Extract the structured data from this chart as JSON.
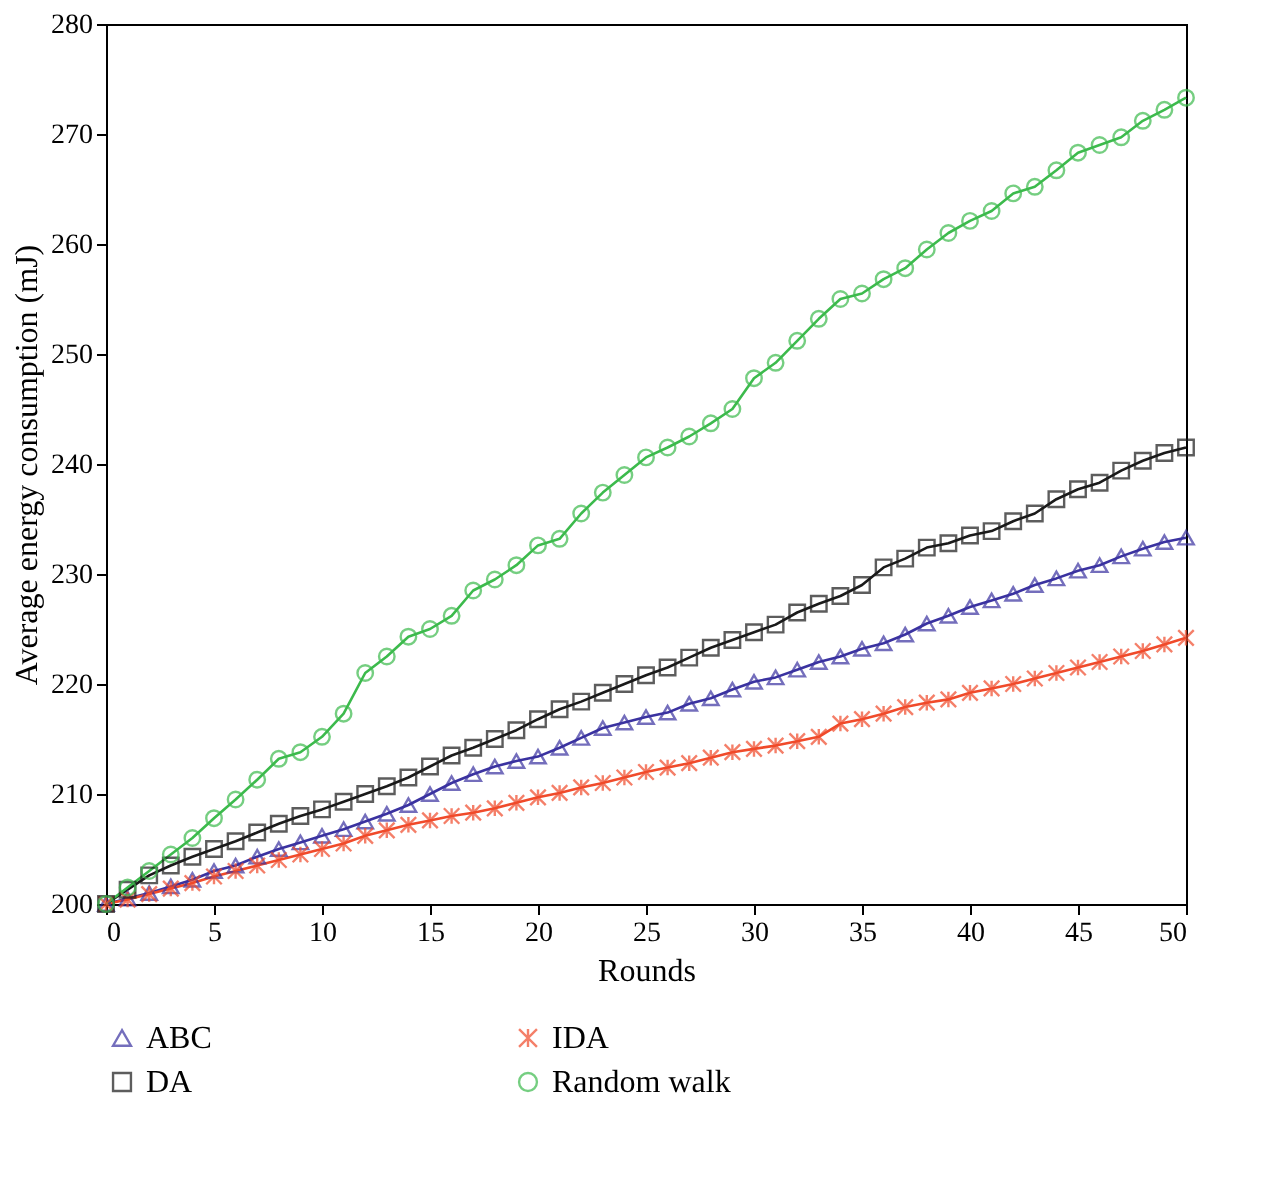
{
  "chart_data": {
    "type": "line",
    "xlabel": "Rounds",
    "ylabel": "Average energy consumption (mJ)",
    "x": [
      0,
      1,
      2,
      3,
      4,
      5,
      6,
      7,
      8,
      9,
      10,
      11,
      12,
      13,
      14,
      15,
      16,
      17,
      18,
      19,
      20,
      21,
      22,
      23,
      24,
      25,
      26,
      27,
      28,
      29,
      30,
      31,
      32,
      33,
      34,
      35,
      36,
      37,
      38,
      39,
      40,
      41,
      42,
      43,
      44,
      45,
      46,
      47,
      48,
      49,
      50
    ],
    "xlim": [
      0,
      50
    ],
    "xticks": [
      0,
      5,
      10,
      15,
      20,
      25,
      30,
      35,
      40,
      45,
      50
    ],
    "ylim": [
      200,
      280
    ],
    "yticks": [
      200,
      210,
      220,
      230,
      240,
      250,
      260,
      270,
      280
    ],
    "grid": false,
    "legend": "bottom",
    "line_style": "solid",
    "series": [
      {
        "name": "ABC",
        "color": "#3a32a0",
        "marker": "triangle",
        "values": [
          200,
          200.5,
          201,
          201.6,
          202.2,
          203,
          203.5,
          204.3,
          205,
          205.6,
          206.2,
          206.8,
          207.5,
          208.2,
          209,
          210,
          211,
          211.8,
          212.5,
          213,
          213.4,
          214.2,
          215.1,
          216,
          216.5,
          217,
          217.4,
          218.2,
          218.7,
          219.5,
          220.2,
          220.6,
          221.3,
          222,
          222.5,
          223.2,
          223.7,
          224.5,
          225.5,
          226.2,
          227,
          227.6,
          228.2,
          229,
          229.6,
          230.3,
          230.8,
          231.6,
          232.3,
          232.9,
          233.3
        ]
      },
      {
        "name": "IDA",
        "color": "#f04a2a",
        "marker": "cross",
        "values": [
          200,
          200.4,
          200.9,
          201.4,
          201.9,
          202.5,
          203,
          203.5,
          204,
          204.5,
          205,
          205.5,
          206.2,
          206.7,
          207.2,
          207.6,
          208,
          208.3,
          208.7,
          209.2,
          209.7,
          210.1,
          210.6,
          211,
          211.5,
          212,
          212.4,
          212.8,
          213.3,
          213.8,
          214.1,
          214.4,
          214.8,
          215.2,
          216.4,
          216.8,
          217.3,
          217.9,
          218.3,
          218.6,
          219.2,
          219.6,
          220,
          220.5,
          221,
          221.5,
          222,
          222.5,
          223,
          223.6,
          224.2
        ]
      },
      {
        "name": "DA",
        "color": "#1a1a1a",
        "marker": "square",
        "values": [
          200,
          201.3,
          202.6,
          203.5,
          204.3,
          205,
          205.7,
          206.5,
          207.3,
          208,
          208.6,
          209.3,
          210,
          210.7,
          211.5,
          212.5,
          213.5,
          214.2,
          215,
          215.8,
          216.8,
          217.7,
          218.4,
          219.2,
          220,
          220.8,
          221.5,
          222.4,
          223.3,
          224,
          224.7,
          225.4,
          226.5,
          227.3,
          228,
          229,
          230.6,
          231.4,
          232.4,
          232.8,
          233.5,
          233.9,
          234.8,
          235.5,
          236.8,
          237.7,
          238.3,
          239.4,
          240.3,
          241,
          241.5
        ]
      },
      {
        "name": "Random walk",
        "color": "#3cba4c",
        "marker": "circle",
        "values": [
          200,
          201.5,
          203,
          204.5,
          206,
          207.8,
          209.5,
          211.3,
          213.2,
          213.8,
          215.2,
          217.3,
          221,
          222.5,
          224.3,
          225,
          226.2,
          228.5,
          229.5,
          230.8,
          232.6,
          233.2,
          235.5,
          237.4,
          239,
          240.6,
          241.5,
          242.5,
          243.7,
          245,
          247.8,
          249.2,
          251.2,
          253.2,
          255,
          255.5,
          256.8,
          257.8,
          259.5,
          261,
          262.1,
          263,
          264.6,
          265.2,
          266.7,
          268.3,
          269,
          269.7,
          271.2,
          272.2,
          273.3
        ]
      }
    ]
  }
}
